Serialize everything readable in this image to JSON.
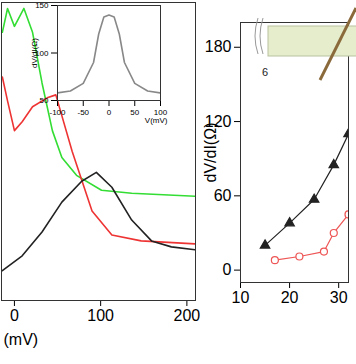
{
  "chart_data": [
    {
      "type": "line",
      "x_label": "(mV)",
      "xlim": [
        -15,
        210
      ],
      "xticks": [
        0,
        100,
        200
      ],
      "ylim": [
        0,
        100
      ],
      "tick_labels": "x",
      "series": [
        {
          "color": "#33dd33",
          "x": [
            -14,
            -8,
            0,
            11,
            21,
            32,
            44,
            55,
            72,
            101,
            136,
            210
          ],
          "values": [
            90,
            98,
            92,
            98,
            90,
            73,
            57,
            48,
            42,
            37,
            36,
            35
          ]
        },
        {
          "color": "#ee3333",
          "x": [
            -14,
            -8,
            0,
            9,
            21,
            38,
            48,
            67,
            90,
            113,
            147,
            210
          ],
          "values": [
            75,
            67,
            57,
            60,
            65,
            68,
            69,
            50,
            30,
            22,
            20,
            19
          ]
        },
        {
          "color": "#222222",
          "x": [
            -14,
            9,
            32,
            55,
            78,
            95,
            113,
            136,
            159,
            182,
            210
          ],
          "values": [
            10,
            15,
            23,
            33,
            40,
            43,
            38,
            27,
            20,
            18,
            17
          ]
        }
      ]
    },
    {
      "type": "line",
      "x_label": "V(mV)",
      "y_label": "dV/dI(Ω)",
      "xlim": [
        -100,
        100
      ],
      "xticks": [
        -100,
        -50,
        0,
        50,
        100
      ],
      "ylim": [
        50,
        150
      ],
      "yticks": [
        50,
        100,
        150
      ],
      "series": [
        {
          "color": "#888888",
          "x": [
            -100,
            -75,
            -50,
            -30,
            -20,
            -10,
            0,
            10,
            20,
            30,
            50,
            75,
            100
          ],
          "values": [
            58,
            60,
            68,
            90,
            120,
            138,
            140,
            138,
            120,
            90,
            68,
            60,
            58
          ]
        }
      ]
    },
    {
      "type": "line",
      "y_label": "dV/dI(Ω)",
      "xlim": [
        10,
        32
      ],
      "xticks": [
        10,
        20,
        30
      ],
      "ylim": [
        -10,
        200
      ],
      "yticks": [
        0,
        60,
        120,
        180
      ],
      "annotations": [
        "6"
      ],
      "series": [
        {
          "color": "#222222",
          "marker": "triangle",
          "x": [
            15,
            20,
            25,
            29,
            32
          ],
          "values": [
            20,
            38,
            57,
            85,
            110
          ]
        },
        {
          "color": "#ee5555",
          "marker": "circle",
          "x": [
            17,
            22,
            27,
            29,
            32
          ],
          "values": [
            8,
            11,
            15,
            30,
            45
          ]
        }
      ]
    }
  ]
}
